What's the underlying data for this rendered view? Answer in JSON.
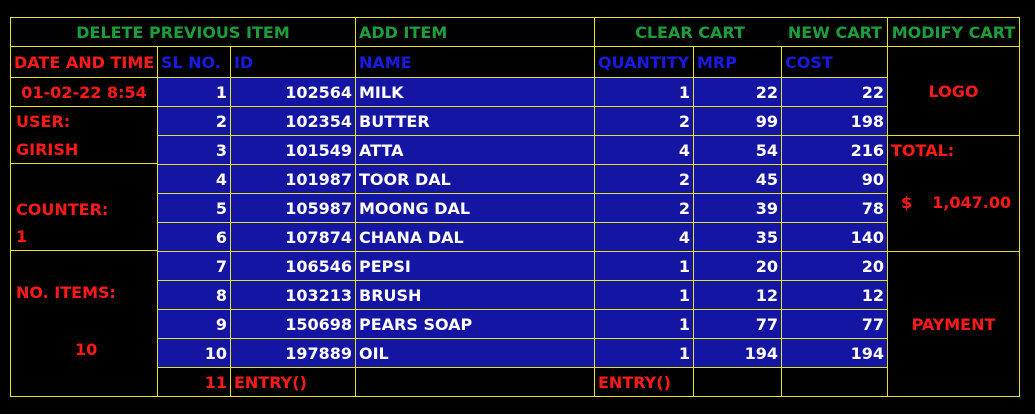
{
  "toolbar": {
    "delete_previous": "DELETE PREVIOUS ITEM",
    "add_item": "ADD ITEM",
    "clear_cart": "CLEAR CART",
    "new_cart": "NEW CART",
    "modify_cart": "MODIFY CART"
  },
  "info": {
    "date_label": "DATE AND TIME",
    "date_value": "01-02-22 8:54",
    "user_label": "USER:",
    "user_value": "GIRISH",
    "counter_label": "COUNTER:",
    "counter_value": "1",
    "items_label": "NO. ITEMS:",
    "items_value": "10"
  },
  "columns": {
    "sl": "SL NO.",
    "id": "ID",
    "name": "NAME",
    "qty": "QUANTITY",
    "mrp": "MRP",
    "cost": "COST"
  },
  "rows": [
    {
      "sl": "1",
      "id": "102564",
      "name": "MILK",
      "qty": "1",
      "mrp": "22",
      "cost": "22"
    },
    {
      "sl": "2",
      "id": "102354",
      "name": "BUTTER",
      "qty": "2",
      "mrp": "99",
      "cost": "198"
    },
    {
      "sl": "3",
      "id": "101549",
      "name": "ATTA",
      "qty": "4",
      "mrp": "54",
      "cost": "216"
    },
    {
      "sl": "4",
      "id": "101987",
      "name": "TOOR DAL",
      "qty": "2",
      "mrp": "45",
      "cost": "90"
    },
    {
      "sl": "5",
      "id": "105987",
      "name": "MOONG DAL",
      "qty": "2",
      "mrp": "39",
      "cost": "78"
    },
    {
      "sl": "6",
      "id": "107874",
      "name": "CHANA DAL",
      "qty": "4",
      "mrp": "35",
      "cost": "140"
    },
    {
      "sl": "7",
      "id": "106546",
      "name": "PEPSI",
      "qty": "1",
      "mrp": "20",
      "cost": "20"
    },
    {
      "sl": "8",
      "id": "103213",
      "name": "BRUSH",
      "qty": "1",
      "mrp": "12",
      "cost": "12"
    },
    {
      "sl": "9",
      "id": "150698",
      "name": "PEARS SOAP",
      "qty": "1",
      "mrp": "77",
      "cost": "77"
    },
    {
      "sl": "10",
      "id": "197889",
      "name": "OIL",
      "qty": "1",
      "mrp": "194",
      "cost": "194"
    }
  ],
  "entry_row": {
    "sl": "11",
    "id_entry": "ENTRY()",
    "qty_entry": "ENTRY()"
  },
  "side": {
    "logo": "LOGO",
    "total_label": "TOTAL:",
    "currency": "$",
    "total_value": "1,047.00",
    "payment": "PAYMENT"
  }
}
